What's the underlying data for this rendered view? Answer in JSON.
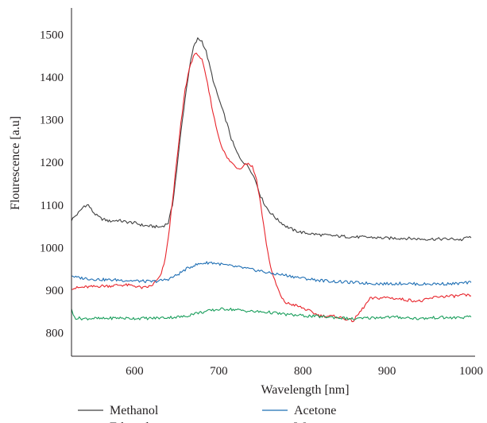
{
  "chart_data": {
    "type": "line",
    "xlabel": "Wavelength [nm]",
    "ylabel": "Flourescence [a.u]",
    "xlim": [
      525,
      1000
    ],
    "ylim": [
      745,
      1555
    ],
    "xticks": [
      600,
      700,
      800,
      900,
      1000
    ],
    "yticks": [
      800,
      900,
      1000,
      1100,
      1200,
      1300,
      1400,
      1500
    ],
    "grid": false,
    "legend_placement": "bottom",
    "series": [
      {
        "name": "Methanol",
        "color": "#404040",
        "x": [
          525,
          530,
          535,
          540,
          545,
          550,
          555,
          560,
          570,
          580,
          590,
          600,
          610,
          620,
          630,
          635,
          640,
          645,
          650,
          655,
          660,
          665,
          670,
          675,
          680,
          685,
          690,
          695,
          700,
          705,
          710,
          715,
          720,
          725,
          730,
          735,
          740,
          745,
          750,
          755,
          760,
          770,
          780,
          790,
          800,
          820,
          840,
          860,
          880,
          900,
          920,
          940,
          960,
          980,
          990,
          995,
          1000
        ],
        "y": [
          1065,
          1075,
          1085,
          1098,
          1100,
          1085,
          1075,
          1068,
          1062,
          1064,
          1060,
          1058,
          1052,
          1050,
          1048,
          1052,
          1058,
          1100,
          1180,
          1270,
          1350,
          1420,
          1470,
          1490,
          1485,
          1460,
          1420,
          1380,
          1350,
          1320,
          1290,
          1255,
          1230,
          1210,
          1200,
          1190,
          1175,
          1150,
          1120,
          1100,
          1085,
          1065,
          1050,
          1040,
          1035,
          1030,
          1027,
          1025,
          1024,
          1022,
          1022,
          1020,
          1020,
          1020,
          1018,
          1025,
          1023
        ]
      },
      {
        "name": "Ethanol",
        "color": "#e8242b",
        "x": [
          525,
          530,
          540,
          550,
          560,
          570,
          580,
          590,
          600,
          610,
          620,
          630,
          635,
          640,
          645,
          650,
          655,
          660,
          665,
          670,
          675,
          680,
          685,
          690,
          695,
          700,
          705,
          710,
          715,
          720,
          725,
          730,
          735,
          740,
          745,
          750,
          755,
          760,
          765,
          770,
          775,
          780,
          790,
          800,
          820,
          840,
          860,
          880,
          900,
          920,
          940,
          960,
          980,
          990,
          1000
        ],
        "y": [
          905,
          905,
          907,
          908,
          910,
          910,
          912,
          912,
          910,
          905,
          910,
          930,
          960,
          1020,
          1110,
          1200,
          1290,
          1370,
          1420,
          1450,
          1455,
          1440,
          1400,
          1350,
          1300,
          1260,
          1230,
          1210,
          1200,
          1190,
          1185,
          1195,
          1198,
          1190,
          1160,
          1100,
          1030,
          970,
          930,
          905,
          880,
          870,
          865,
          858,
          840,
          838,
          828,
          880,
          883,
          878,
          874,
          885,
          886,
          888,
          887
        ]
      },
      {
        "name": "Acetone",
        "color": "#1f6fb4",
        "x": [
          525,
          530,
          540,
          550,
          560,
          570,
          580,
          590,
          600,
          610,
          620,
          630,
          640,
          650,
          660,
          670,
          680,
          690,
          700,
          710,
          720,
          730,
          740,
          750,
          760,
          780,
          800,
          820,
          840,
          860,
          880,
          900,
          920,
          940,
          960,
          980,
          1000
        ],
        "y": [
          935,
          930,
          928,
          926,
          925,
          924,
          924,
          923,
          922,
          921,
          920,
          922,
          926,
          935,
          948,
          958,
          963,
          965,
          962,
          958,
          955,
          952,
          948,
          945,
          940,
          935,
          928,
          923,
          920,
          918,
          916,
          915,
          916,
          914,
          915,
          915,
          918
        ]
      },
      {
        "name": "Water",
        "color": "#1a9e5c",
        "x": [
          525,
          527,
          530,
          540,
          550,
          560,
          570,
          580,
          590,
          600,
          620,
          640,
          660,
          670,
          680,
          690,
          700,
          710,
          720,
          730,
          740,
          760,
          780,
          800,
          820,
          840,
          860,
          880,
          900,
          920,
          940,
          960,
          980,
          1000
        ],
        "y": [
          858,
          840,
          835,
          833,
          834,
          833,
          834,
          835,
          834,
          834,
          834,
          836,
          838,
          845,
          848,
          852,
          855,
          856,
          854,
          852,
          850,
          848,
          843,
          840,
          838,
          836,
          832,
          835,
          837,
          836,
          833,
          836,
          835,
          837
        ]
      }
    ]
  }
}
